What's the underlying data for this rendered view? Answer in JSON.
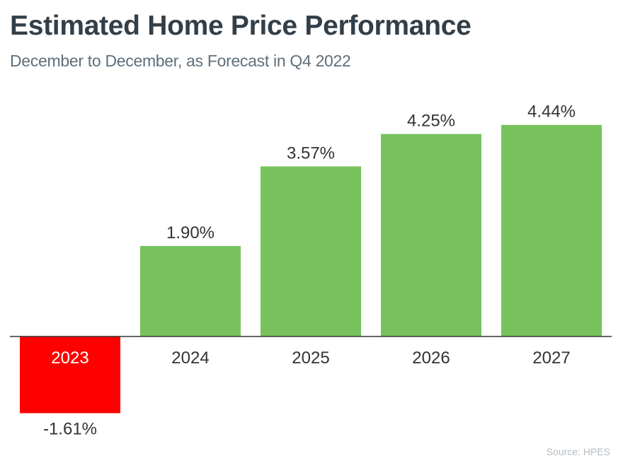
{
  "header": {
    "title": "Estimated Home Price Performance",
    "subtitle": "December to December, as Forecast in Q4 2022"
  },
  "footer": {
    "source": "Source: HPES"
  },
  "colors": {
    "positive": "#77c25c",
    "negative": "#ff0000",
    "axis": "#333333"
  },
  "chart_data": {
    "type": "bar",
    "title": "Estimated Home Price Performance",
    "subtitle": "December to December, as Forecast in Q4 2022",
    "categories": [
      "2023",
      "2024",
      "2025",
      "2026",
      "2027"
    ],
    "values": [
      -1.61,
      1.9,
      3.57,
      4.25,
      4.44
    ],
    "value_labels": [
      "-1.61%",
      "1.90%",
      "3.57%",
      "4.25%",
      "4.44%"
    ],
    "xlabel": "",
    "ylabel": "",
    "ylim": [
      -1.61,
      4.44
    ],
    "grid": false,
    "legend": "none"
  }
}
